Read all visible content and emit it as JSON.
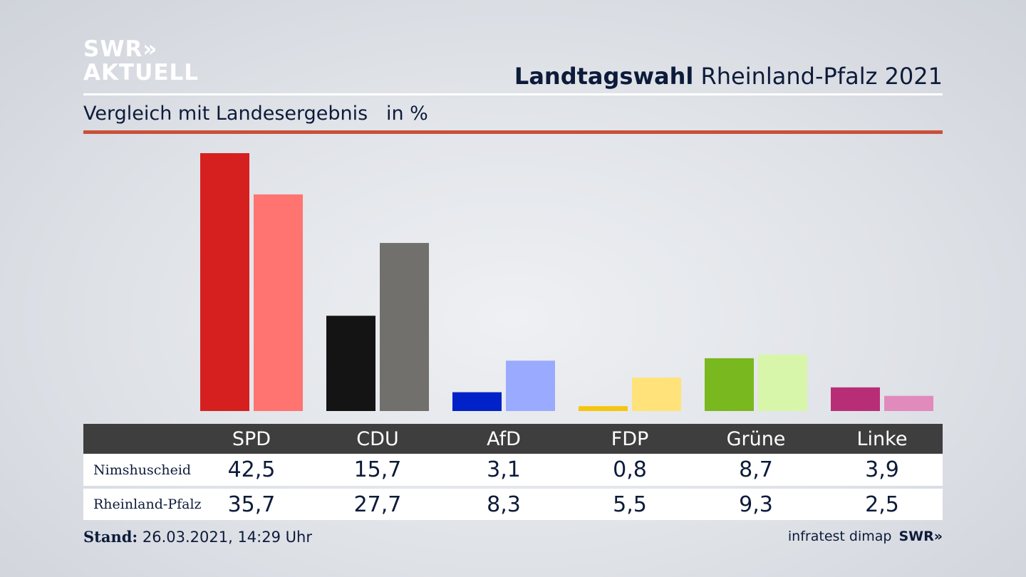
{
  "header": {
    "logo_line1": "SWR»",
    "logo_line2": "AKTUELL",
    "title_bold": "Landtagswahl",
    "title_rest": "Rheinland-Pfalz 2021",
    "subtitle": "Vergleich mit Landesergebnis   in %"
  },
  "chart_data": {
    "type": "bar",
    "categories": [
      "SPD",
      "CDU",
      "AfD",
      "FDP",
      "Grüne",
      "Linke"
    ],
    "series": [
      {
        "name": "Nimshuscheid",
        "values": [
          42.5,
          15.7,
          3.1,
          0.8,
          8.7,
          3.9
        ],
        "colors": [
          "#d62020",
          "#141414",
          "#0022c8",
          "#f6c50e",
          "#79b81e",
          "#b82e76"
        ]
      },
      {
        "name": "Rheinland-Pfalz",
        "values": [
          35.7,
          27.7,
          8.3,
          5.5,
          9.3,
          2.5
        ],
        "colors": [
          "#ff7470",
          "#72706d",
          "#9aaaff",
          "#ffe37a",
          "#d8f6a9",
          "#e08bbc"
        ]
      }
    ],
    "ylim": [
      0,
      42.5
    ],
    "grid": false,
    "legend": "table-below"
  },
  "table": {
    "rows": [
      {
        "label": "Nimshuscheid",
        "values": [
          "42,5",
          "15,7",
          "3,1",
          "0,8",
          "8,7",
          "3,9"
        ]
      },
      {
        "label": "Rheinland-Pfalz",
        "values": [
          "35,7",
          "27,7",
          "8,3",
          "5,5",
          "9,3",
          "2,5"
        ]
      }
    ]
  },
  "footer": {
    "stand_label": "Stand:",
    "stand_value": " 26.03.2021, 14:29 Uhr",
    "source": "infratest dimap",
    "brand": "SWR»"
  }
}
